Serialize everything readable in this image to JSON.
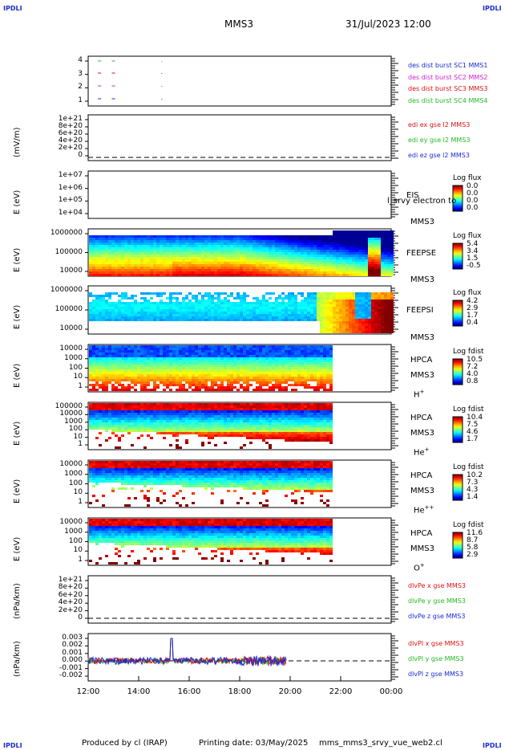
{
  "corners": {
    "tl": "IPDLI",
    "tr": "IPDLI",
    "bl": "IPDLI",
    "br": "IPDLI"
  },
  "header": {
    "mission": "MMS3",
    "datetime": "31/Jul/2023 12:00"
  },
  "footer": {
    "produced_by": "Produced by cl (IRAP)",
    "printing_date": "Printing date: 03/May/2025",
    "script": "mms_mms3_srvy_vue_web2.cl"
  },
  "chart_data": {
    "type": "heatmap",
    "x_axis": {
      "ticks": [
        "12:00",
        "14:00",
        "16:00",
        "18:00",
        "20:00",
        "22:00",
        "00:00"
      ],
      "range": [
        "12:00",
        "00:00"
      ]
    },
    "panels": [
      {
        "id": "burst",
        "ylabel": "",
        "ticks": [
          "4",
          "3",
          "2",
          "1"
        ],
        "legend": [
          {
            "text": "des dist burst SC1 MMS1",
            "color": "#1a2bd0"
          },
          {
            "text": "des dist burst SC2 MMS2",
            "color": "#cc22cc"
          },
          {
            "text": "des dist burst SC3 MMS3",
            "color": "#dd1111"
          },
          {
            "text": "des dist burst SC4 MMS4",
            "color": "#22bb22"
          }
        ]
      },
      {
        "id": "edi",
        "ylabel": "(mV/m)",
        "ticks": [
          "1e+21",
          "8e+20",
          "6e+20",
          "4e+20",
          "2e+20",
          "0"
        ],
        "legend": [
          {
            "text": "edi ex gse l2 MMS3",
            "color": "#dd1111"
          },
          {
            "text": "edi ey gse l2 MMS3",
            "color": "#22bb22"
          },
          {
            "text": "edi ez gse l2 MMS3",
            "color": "#1a2bd0"
          }
        ]
      },
      {
        "id": "eis",
        "ylabel": "E (eV)",
        "ticks": [
          "1e+07",
          "1e+06",
          "1e+05",
          "1e+04"
        ],
        "instrument": "EIS",
        "overlay": "l_srvy electron to",
        "sc": "MMS3",
        "colorbar": {
          "title": "Log flux",
          "values": [
            "0.0",
            "0.0",
            "0.0",
            "0.0"
          ]
        }
      },
      {
        "id": "feepse",
        "ylabel": "E (eV)",
        "ticks": [
          "1000000",
          "100000",
          "10000"
        ],
        "instrument": "FEEPSE",
        "sc": "MMS3",
        "colorbar": {
          "title": "Log flux",
          "values": [
            "5.4",
            "3.4",
            "1.5",
            "-0.5"
          ]
        }
      },
      {
        "id": "feepsi",
        "ylabel": "E (eV)",
        "ticks": [
          "1000000",
          "100000",
          "10000"
        ],
        "instrument": "FEEPSI",
        "sc": "MMS3",
        "colorbar": {
          "title": "Log flux",
          "values": [
            "4.2",
            "2.9",
            "1.7",
            "0.4"
          ]
        }
      },
      {
        "id": "hpca_h",
        "ylabel": "E (eV)",
        "ticks": [
          "10000",
          "1000",
          "100",
          "10",
          "1"
        ],
        "instrument": "HPCA",
        "sc": "MMS3",
        "species": "H",
        "charge": "+",
        "colorbar": {
          "title": "Log fdist",
          "values": [
            "10.5",
            "7.2",
            "4.0",
            "0.8"
          ]
        }
      },
      {
        "id": "hpca_he",
        "ylabel": "E (eV)",
        "ticks": [
          "100000",
          "10000",
          "1000",
          "100",
          "10",
          "1"
        ],
        "instrument": "HPCA",
        "sc": "MMS3",
        "species": "He",
        "charge": "+",
        "colorbar": {
          "title": "Log fdist",
          "values": [
            "10.4",
            "7.5",
            "4.6",
            "1.7"
          ]
        }
      },
      {
        "id": "hpca_hepp",
        "ylabel": "E (eV)",
        "ticks": [
          "10000",
          "1000",
          "100",
          "10",
          "1"
        ],
        "instrument": "HPCA",
        "sc": "MMS3",
        "species": "He",
        "charge": "++",
        "colorbar": {
          "title": "Log fdist",
          "values": [
            "10.2",
            "7.3",
            "4.3",
            "1.4"
          ]
        }
      },
      {
        "id": "hpca_o",
        "ylabel": "E (eV)",
        "ticks": [
          "10000",
          "1000",
          "100",
          "10",
          "1"
        ],
        "instrument": "HPCA",
        "sc": "MMS3",
        "species": "O",
        "charge": "+",
        "colorbar": {
          "title": "Log fdist",
          "values": [
            "11.6",
            "8.7",
            "5.8",
            "2.9"
          ]
        }
      },
      {
        "id": "divpe",
        "ylabel": "(nPa/km)",
        "ticks": [
          "1e+21",
          "8e+20",
          "6e+20",
          "4e+20",
          "2e+20",
          "0"
        ],
        "legend": [
          {
            "text": "dlvPe x gse MMS3",
            "color": "#dd1111"
          },
          {
            "text": "dlvPe y gse MMS3",
            "color": "#22bb22"
          },
          {
            "text": "dlvPe z gse MMS3",
            "color": "#1a2bd0"
          }
        ]
      },
      {
        "id": "divpi",
        "ylabel": "(nPa/km)",
        "ticks": [
          "0.003",
          "0.002",
          "0.001",
          "0.000",
          "-0.001",
          "-0.002"
        ],
        "legend": [
          {
            "text": "dlvPl x gse MMS3",
            "color": "#dd1111"
          },
          {
            "text": "dlvPl y gse MMS3",
            "color": "#22bb22"
          },
          {
            "text": "dlvPl z gse MMS3",
            "color": "#1a2bd0"
          }
        ]
      }
    ]
  }
}
